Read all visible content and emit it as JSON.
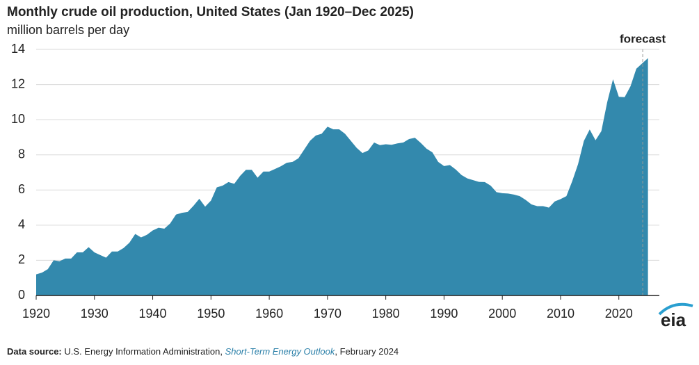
{
  "chart_data": {
    "type": "area",
    "title": "Monthly crude oil production, United States (Jan 1920–Dec 2025)",
    "subtitle": "million barrels per day",
    "forecast_label": "forecast",
    "forecast_start": 2024.1,
    "source": {
      "label": "Data source:",
      "text": "U.S. Energy Information Administration,",
      "report": "Short-Term Energy Outlook",
      "date": ", February 2024"
    },
    "logo": "eia",
    "color": "#3389ad",
    "grid": true,
    "xlim": [
      1920,
      2026
    ],
    "xticks": [
      1920,
      1930,
      1940,
      1950,
      1960,
      1970,
      1980,
      1990,
      2000,
      2010,
      2020
    ],
    "ylim": [
      0,
      14
    ],
    "yticks": [
      0,
      2,
      4,
      6,
      8,
      10,
      12,
      14
    ],
    "x": [
      1920,
      1921,
      1922,
      1923,
      1924,
      1925,
      1926,
      1927,
      1928,
      1929,
      1930,
      1931,
      1932,
      1933,
      1934,
      1935,
      1936,
      1937,
      1938,
      1939,
      1940,
      1941,
      1942,
      1943,
      1944,
      1945,
      1946,
      1947,
      1948,
      1949,
      1950,
      1951,
      1952,
      1953,
      1954,
      1955,
      1956,
      1957,
      1958,
      1959,
      1960,
      1961,
      1962,
      1963,
      1964,
      1965,
      1966,
      1967,
      1968,
      1969,
      1970,
      1971,
      1972,
      1973,
      1974,
      1975,
      1976,
      1977,
      1978,
      1979,
      1980,
      1981,
      1982,
      1983,
      1984,
      1985,
      1986,
      1987,
      1988,
      1989,
      1990,
      1991,
      1992,
      1993,
      1994,
      1995,
      1996,
      1997,
      1998,
      1999,
      2000,
      2001,
      2002,
      2003,
      2004,
      2005,
      2006,
      2007,
      2008,
      2009,
      2010,
      2011,
      2012,
      2013,
      2014,
      2015,
      2016,
      2017,
      2018,
      2019,
      2020,
      2021,
      2022,
      2023,
      2024,
      2025
    ],
    "values": [
      1.2,
      1.3,
      1.5,
      2.0,
      1.95,
      2.1,
      2.1,
      2.45,
      2.45,
      2.75,
      2.45,
      2.3,
      2.15,
      2.5,
      2.5,
      2.7,
      3.0,
      3.5,
      3.3,
      3.45,
      3.7,
      3.85,
      3.8,
      4.1,
      4.6,
      4.7,
      4.75,
      5.1,
      5.5,
      5.05,
      5.4,
      6.15,
      6.25,
      6.45,
      6.35,
      6.8,
      7.15,
      7.15,
      6.7,
      7.05,
      7.05,
      7.2,
      7.35,
      7.55,
      7.6,
      7.8,
      8.3,
      8.8,
      9.1,
      9.2,
      9.6,
      9.45,
      9.45,
      9.2,
      8.8,
      8.4,
      8.1,
      8.25,
      8.7,
      8.55,
      8.6,
      8.57,
      8.65,
      8.7,
      8.9,
      8.97,
      8.68,
      8.35,
      8.14,
      7.6,
      7.36,
      7.42,
      7.17,
      6.85,
      6.66,
      6.56,
      6.46,
      6.45,
      6.25,
      5.88,
      5.82,
      5.8,
      5.74,
      5.65,
      5.44,
      5.18,
      5.08,
      5.08,
      5.0,
      5.35,
      5.48,
      5.65,
      6.5,
      7.47,
      8.79,
      9.44,
      8.83,
      9.35,
      10.99,
      12.3,
      11.3,
      11.28,
      11.9,
      12.9,
      13.2,
      13.5
    ]
  }
}
